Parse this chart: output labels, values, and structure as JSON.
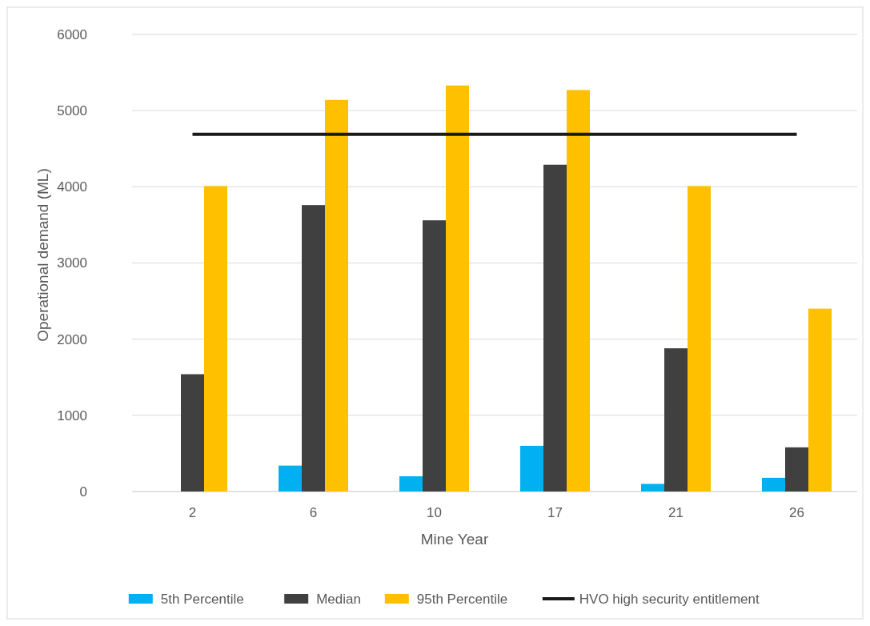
{
  "chart_data": {
    "type": "bar",
    "xlabel": "Mine Year",
    "ylabel": "Operational demand (ML)",
    "categories": [
      "2",
      "6",
      "10",
      "17",
      "21",
      "26"
    ],
    "series": [
      {
        "name": "5th Percentile",
        "color": "#00b0f0",
        "values": [
          0,
          340,
          200,
          600,
          100,
          180
        ]
      },
      {
        "name": "Median",
        "color": "#404040",
        "values": [
          1540,
          3760,
          3560,
          4290,
          1880,
          580
        ]
      },
      {
        "name": "95th Percentile",
        "color": "#ffc000",
        "values": [
          4010,
          5140,
          5330,
          5270,
          4010,
          2400
        ]
      },
      {
        "name": "HVO high security entitlement",
        "type": "line",
        "color": "#1a1a1a",
        "values": [
          4690,
          4690,
          4690,
          4690,
          4690,
          4690
        ]
      }
    ],
    "ylim": [
      0,
      6000
    ],
    "yticks": [
      0,
      1000,
      2000,
      3000,
      4000,
      5000,
      6000
    ],
    "grid": "y",
    "legend": "bottom"
  }
}
